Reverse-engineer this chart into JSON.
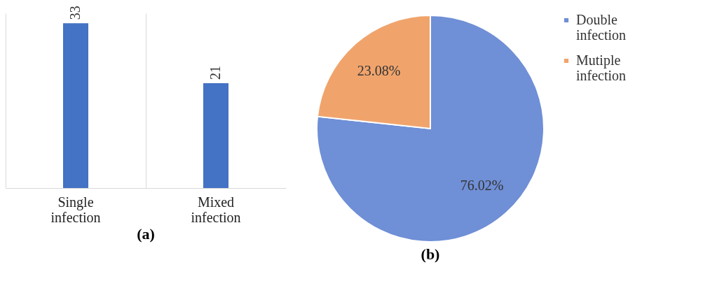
{
  "chart_data": [
    {
      "type": "bar",
      "title": "(a)",
      "categories": [
        "Single infection",
        "Mixed infection"
      ],
      "values": [
        33,
        21
      ],
      "color": "#4472c4",
      "data_labels": true,
      "grid": "x"
    },
    {
      "type": "pie",
      "title": "(b)",
      "categories": [
        "Double infection",
        "Mutiple infection"
      ],
      "values": [
        76.02,
        23.08
      ],
      "colors": [
        "#6f8fd6",
        "#f0a46c"
      ],
      "value_labels": [
        "76.02%",
        "23.08%"
      ],
      "legend": "right"
    }
  ]
}
